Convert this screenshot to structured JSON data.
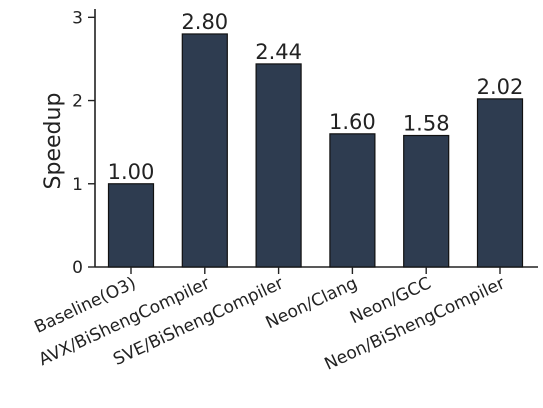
{
  "chart_data": {
    "type": "bar",
    "categories": [
      "Baseline(O3)",
      "AVX/BiShengCompiler",
      "SVE/BiShengCompiler",
      "Neon/Clang",
      "Neon/GCC",
      "Neon/BiShengCompiler"
    ],
    "values": [
      1.0,
      2.8,
      2.44,
      1.6,
      1.58,
      2.02
    ],
    "data_labels": [
      "1.00",
      "2.80",
      "2.44",
      "1.60",
      "1.58",
      "2.02"
    ],
    "title": "",
    "xlabel": "",
    "ylabel": "Speedup",
    "ylim": [
      0,
      3.1
    ],
    "yticks": [
      0,
      1,
      2,
      3
    ],
    "grid": false,
    "colors": {
      "bar": "#2e3c50"
    }
  }
}
